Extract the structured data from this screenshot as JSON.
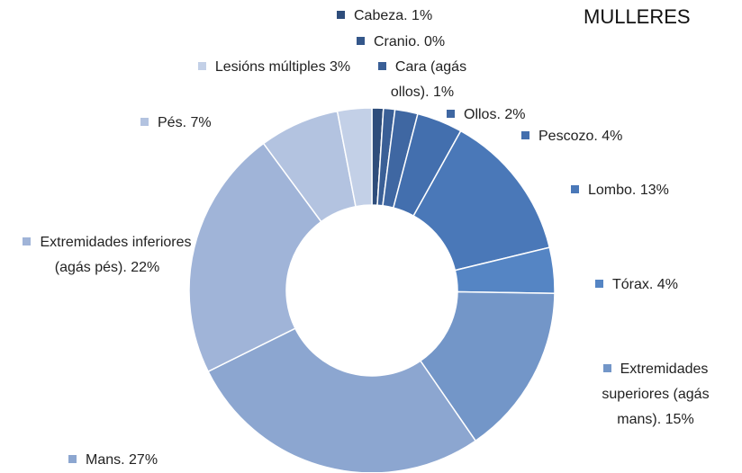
{
  "chart_data": {
    "type": "donut",
    "title": "MULLERES",
    "categories": [
      "Cabeza.",
      "Cranio.",
      "Cara (agás ollos).",
      "Ollos.",
      "Pescozo.",
      "Lombo.",
      "Tórax.",
      "Extremidades superiores (agás mans).",
      "Mans.",
      "Extremidades inferiores (agás pés).",
      "Pés.",
      "Lesións múltiples"
    ],
    "values": [
      1,
      0,
      1,
      2,
      4,
      13,
      4,
      15,
      27,
      22,
      7,
      3
    ],
    "value_labels": [
      "1%",
      "0%",
      "1%",
      "2%",
      "4%",
      "13%",
      "4%",
      "15%",
      "27%",
      "22%",
      "7%",
      "3%"
    ],
    "colors": [
      "#2e4d7b",
      "#34578a",
      "#3a5f96",
      "#3f67a2",
      "#436fae",
      "#4a78b8",
      "#5585c4",
      "#7396c8",
      "#8ca6d0",
      "#a0b4d8",
      "#b3c3e0",
      "#c3d0e7"
    ]
  }
}
